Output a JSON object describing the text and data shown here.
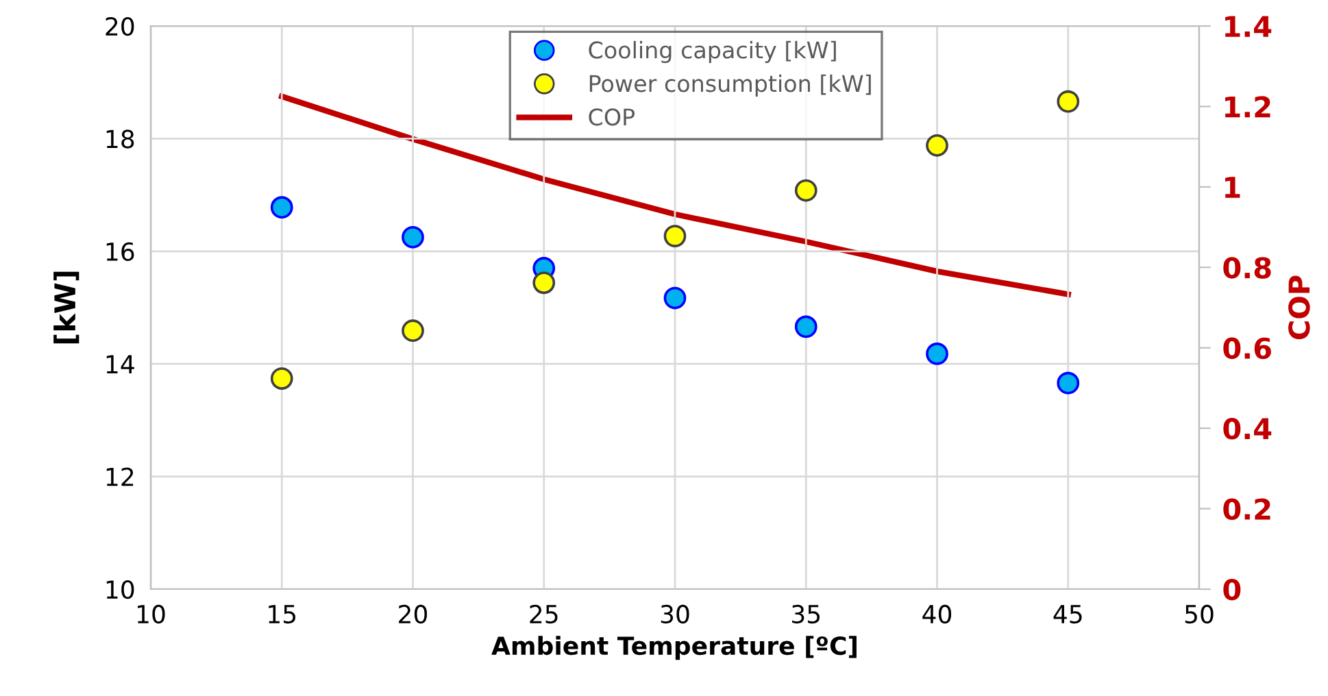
{
  "chart_data": {
    "type": "scatter",
    "xlabel": "Ambient Temperature [ºC]",
    "ylabel": "[kW]",
    "y2label": "COP",
    "x": [
      15,
      20,
      25,
      30,
      35,
      40,
      45
    ],
    "series": [
      {
        "name": "Cooling capacity [kW]",
        "marker": "circle",
        "color": "#00b0f0",
        "values": [
          16.78,
          16.25,
          15.7,
          15.17,
          14.66,
          14.18,
          13.66
        ]
      },
      {
        "name": "Power consumption [kW]",
        "marker": "circle",
        "color": "#ffff00",
        "values": [
          13.74,
          14.59,
          15.44,
          16.27,
          17.08,
          17.88,
          18.66
        ]
      },
      {
        "name": "COP",
        "type": "line",
        "marker": "none",
        "axis": "y2",
        "color": "#c00000",
        "values": [
          1.225,
          1.119,
          1.019,
          0.932,
          0.864,
          0.79,
          0.733
        ]
      }
    ],
    "xlim": [
      10,
      50
    ],
    "xticks": [
      10,
      15,
      20,
      25,
      30,
      35,
      40,
      45,
      50
    ],
    "ylim": [
      10,
      20
    ],
    "yticks": [
      10,
      12,
      14,
      16,
      18,
      20
    ],
    "y2lim": [
      0,
      1.4
    ],
    "y2ticks": [
      0,
      0.2,
      0.4,
      0.6,
      0.8,
      1,
      1.2,
      1.4
    ],
    "grid": true,
    "legend": "top"
  }
}
